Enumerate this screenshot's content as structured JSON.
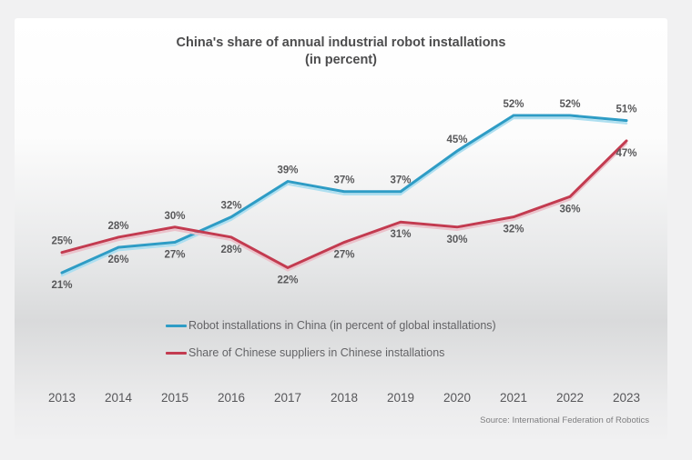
{
  "title": {
    "line1": "China's share of annual industrial robot installations",
    "line2": "(in percent)"
  },
  "source": "Source: International Federation of Robotics",
  "chart_data": {
    "type": "line",
    "categories": [
      "2013",
      "2014",
      "2015",
      "2016",
      "2017",
      "2018",
      "2019",
      "2020",
      "2021",
      "2022",
      "2023"
    ],
    "series": [
      {
        "name": "Robot installations in China (in percent of global installations)",
        "color": "#2e9cc5",
        "glow_color": "#aedff0",
        "values": [
          21,
          26,
          27,
          32,
          39,
          37,
          37,
          45,
          52,
          52,
          51
        ],
        "label_positions": [
          "below",
          "below",
          "below",
          "above",
          "above",
          "above",
          "above",
          "above",
          "above",
          "above",
          "above"
        ]
      },
      {
        "name": "Share of Chinese suppliers in Chinese installations",
        "color": "#c33b50",
        "glow_color": "#ebc2cb",
        "values": [
          25,
          28,
          30,
          28,
          22,
          27,
          31,
          30,
          32,
          36,
          47
        ],
        "label_positions": [
          "above",
          "above",
          "above",
          "below",
          "below",
          "below",
          "below",
          "below",
          "below",
          "below",
          "below"
        ]
      }
    ],
    "value_suffix": "%",
    "ylim": [
      18,
      56
    ],
    "grid": false,
    "axes_shown": false,
    "data_labels": true,
    "legend_position": "bottom-center-left"
  }
}
